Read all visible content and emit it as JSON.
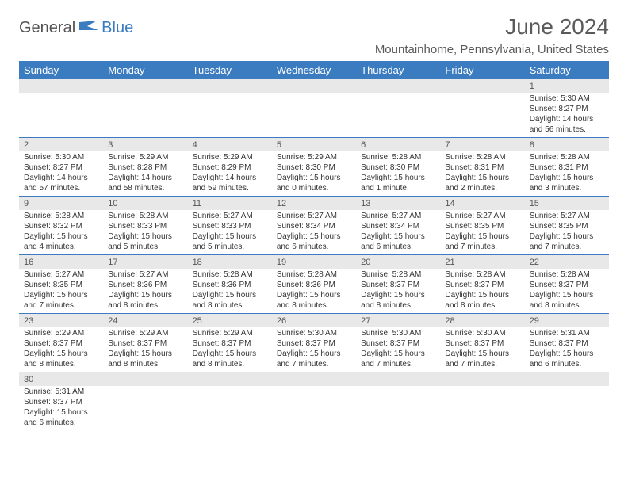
{
  "brand": {
    "part1": "General",
    "part2": "Blue"
  },
  "title": "June 2024",
  "location": "Mountainhome, Pennsylvania, United States",
  "colors": {
    "header_bg": "#3b7bbf",
    "header_fg": "#ffffff",
    "daynum_bg": "#e8e8e8",
    "row_divider": "#3b7bbf",
    "text": "#333333",
    "title_color": "#5a5a5a"
  },
  "typography": {
    "title_fontsize": 28,
    "location_fontsize": 15,
    "dayheader_fontsize": 13,
    "daynum_fontsize": 11,
    "body_fontsize": 10
  },
  "layout": {
    "columns": 7,
    "rows": 6
  },
  "day_headers": [
    "Sunday",
    "Monday",
    "Tuesday",
    "Wednesday",
    "Thursday",
    "Friday",
    "Saturday"
  ],
  "weeks": [
    [
      null,
      null,
      null,
      null,
      null,
      null,
      {
        "n": "1",
        "sunrise": "5:30 AM",
        "sunset": "8:27 PM",
        "daylight": "14 hours and 56 minutes."
      }
    ],
    [
      {
        "n": "2",
        "sunrise": "5:30 AM",
        "sunset": "8:27 PM",
        "daylight": "14 hours and 57 minutes."
      },
      {
        "n": "3",
        "sunrise": "5:29 AM",
        "sunset": "8:28 PM",
        "daylight": "14 hours and 58 minutes."
      },
      {
        "n": "4",
        "sunrise": "5:29 AM",
        "sunset": "8:29 PM",
        "daylight": "14 hours and 59 minutes."
      },
      {
        "n": "5",
        "sunrise": "5:29 AM",
        "sunset": "8:30 PM",
        "daylight": "15 hours and 0 minutes."
      },
      {
        "n": "6",
        "sunrise": "5:28 AM",
        "sunset": "8:30 PM",
        "daylight": "15 hours and 1 minute."
      },
      {
        "n": "7",
        "sunrise": "5:28 AM",
        "sunset": "8:31 PM",
        "daylight": "15 hours and 2 minutes."
      },
      {
        "n": "8",
        "sunrise": "5:28 AM",
        "sunset": "8:31 PM",
        "daylight": "15 hours and 3 minutes."
      }
    ],
    [
      {
        "n": "9",
        "sunrise": "5:28 AM",
        "sunset": "8:32 PM",
        "daylight": "15 hours and 4 minutes."
      },
      {
        "n": "10",
        "sunrise": "5:28 AM",
        "sunset": "8:33 PM",
        "daylight": "15 hours and 5 minutes."
      },
      {
        "n": "11",
        "sunrise": "5:27 AM",
        "sunset": "8:33 PM",
        "daylight": "15 hours and 5 minutes."
      },
      {
        "n": "12",
        "sunrise": "5:27 AM",
        "sunset": "8:34 PM",
        "daylight": "15 hours and 6 minutes."
      },
      {
        "n": "13",
        "sunrise": "5:27 AM",
        "sunset": "8:34 PM",
        "daylight": "15 hours and 6 minutes."
      },
      {
        "n": "14",
        "sunrise": "5:27 AM",
        "sunset": "8:35 PM",
        "daylight": "15 hours and 7 minutes."
      },
      {
        "n": "15",
        "sunrise": "5:27 AM",
        "sunset": "8:35 PM",
        "daylight": "15 hours and 7 minutes."
      }
    ],
    [
      {
        "n": "16",
        "sunrise": "5:27 AM",
        "sunset": "8:35 PM",
        "daylight": "15 hours and 7 minutes."
      },
      {
        "n": "17",
        "sunrise": "5:27 AM",
        "sunset": "8:36 PM",
        "daylight": "15 hours and 8 minutes."
      },
      {
        "n": "18",
        "sunrise": "5:28 AM",
        "sunset": "8:36 PM",
        "daylight": "15 hours and 8 minutes."
      },
      {
        "n": "19",
        "sunrise": "5:28 AM",
        "sunset": "8:36 PM",
        "daylight": "15 hours and 8 minutes."
      },
      {
        "n": "20",
        "sunrise": "5:28 AM",
        "sunset": "8:37 PM",
        "daylight": "15 hours and 8 minutes."
      },
      {
        "n": "21",
        "sunrise": "5:28 AM",
        "sunset": "8:37 PM",
        "daylight": "15 hours and 8 minutes."
      },
      {
        "n": "22",
        "sunrise": "5:28 AM",
        "sunset": "8:37 PM",
        "daylight": "15 hours and 8 minutes."
      }
    ],
    [
      {
        "n": "23",
        "sunrise": "5:29 AM",
        "sunset": "8:37 PM",
        "daylight": "15 hours and 8 minutes."
      },
      {
        "n": "24",
        "sunrise": "5:29 AM",
        "sunset": "8:37 PM",
        "daylight": "15 hours and 8 minutes."
      },
      {
        "n": "25",
        "sunrise": "5:29 AM",
        "sunset": "8:37 PM",
        "daylight": "15 hours and 8 minutes."
      },
      {
        "n": "26",
        "sunrise": "5:30 AM",
        "sunset": "8:37 PM",
        "daylight": "15 hours and 7 minutes."
      },
      {
        "n": "27",
        "sunrise": "5:30 AM",
        "sunset": "8:37 PM",
        "daylight": "15 hours and 7 minutes."
      },
      {
        "n": "28",
        "sunrise": "5:30 AM",
        "sunset": "8:37 PM",
        "daylight": "15 hours and 7 minutes."
      },
      {
        "n": "29",
        "sunrise": "5:31 AM",
        "sunset": "8:37 PM",
        "daylight": "15 hours and 6 minutes."
      }
    ],
    [
      {
        "n": "30",
        "sunrise": "5:31 AM",
        "sunset": "8:37 PM",
        "daylight": "15 hours and 6 minutes."
      },
      null,
      null,
      null,
      null,
      null,
      null
    ]
  ],
  "labels": {
    "sunrise": "Sunrise:",
    "sunset": "Sunset:",
    "daylight": "Daylight:"
  }
}
